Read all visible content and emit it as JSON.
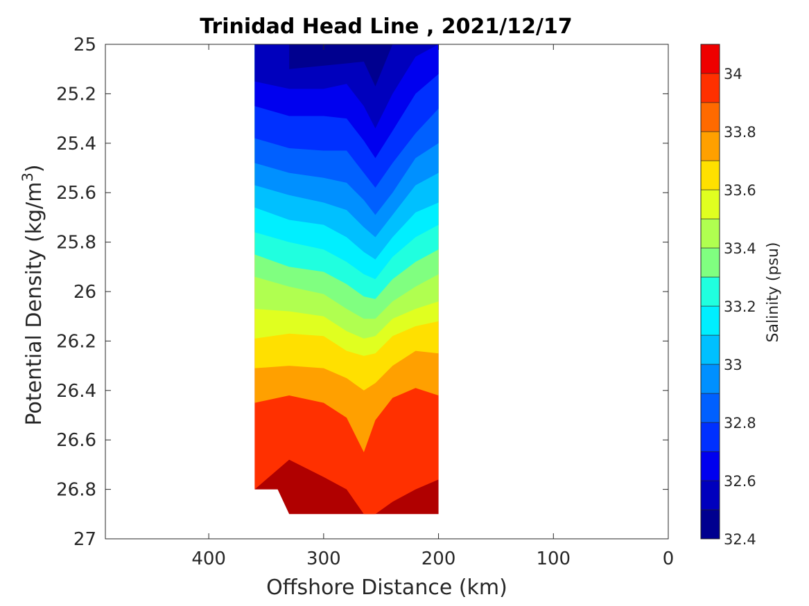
{
  "chart_data": {
    "type": "contour",
    "title": "Trinidad Head Line , 2021/12/17",
    "xlabel": "Offshore Distance (km)",
    "ylabel_main": "Potential Density (kg/m",
    "ylabel_sup": "3",
    "ylabel_end": ")",
    "colorbar_label": "Salinity (psu)",
    "xlim": [
      490,
      0
    ],
    "ylim": [
      25,
      27
    ],
    "x_reversed": true,
    "y_reversed": true,
    "xticks": [
      400,
      300,
      200,
      100,
      0
    ],
    "xtick_labels": [
      "400",
      "300",
      "200",
      "100",
      "0"
    ],
    "yticks": [
      25,
      25.2,
      25.4,
      25.6,
      25.8,
      26,
      26.2,
      26.4,
      26.6,
      26.8,
      27
    ],
    "ytick_labels": [
      "25",
      "25.2",
      "25.4",
      "25.6",
      "25.8",
      "26",
      "26.2",
      "26.4",
      "26.6",
      "26.8",
      "27"
    ],
    "colorbar": {
      "range": [
        32.4,
        34.1
      ],
      "ticks": [
        32.4,
        32.6,
        32.8,
        33,
        33.2,
        33.4,
        33.6,
        33.8,
        34
      ],
      "tick_labels": [
        "32.4",
        "32.6",
        "32.8",
        "33",
        "33.2",
        "33.4",
        "33.6",
        "33.8",
        "34"
      ],
      "levels": [
        32.4,
        32.5,
        32.6,
        32.7,
        32.8,
        32.9,
        33.0,
        33.1,
        33.2,
        33.3,
        33.4,
        33.5,
        33.6,
        33.7,
        33.8,
        33.9,
        34.0,
        34.1
      ],
      "colors": [
        "#00008f",
        "#0000bd",
        "#0000ef",
        "#0030ff",
        "#0060ff",
        "#0090ff",
        "#00c0ff",
        "#00efff",
        "#20ffdf",
        "#80ff80",
        "#b0ff50",
        "#e0ff20",
        "#ffe000",
        "#ffa000",
        "#ff6a00",
        "#ff3000",
        "#ef0000",
        "#b00000"
      ]
    },
    "data_extent": {
      "x_range_km": [
        360,
        200
      ],
      "top_density": 25.0,
      "bottom_density_offshore": 26.8,
      "bottom_density_inshore": 26.9
    },
    "stations_km": [
      360,
      330,
      300,
      280,
      265,
      255,
      240,
      220,
      200
    ],
    "isohalines": [
      {
        "level": 32.5,
        "y": [
          null,
          25.1,
          null,
          null,
          25.07,
          25.17,
          25.0,
          null,
          null
        ]
      },
      {
        "level": 32.6,
        "y": [
          25.15,
          25.18,
          25.18,
          25.16,
          25.25,
          25.34,
          25.2,
          25.05,
          25.0
        ]
      },
      {
        "level": 32.7,
        "y": [
          25.25,
          25.29,
          25.29,
          25.3,
          25.39,
          25.46,
          25.35,
          25.2,
          25.12
        ]
      },
      {
        "level": 32.8,
        "y": [
          25.38,
          25.42,
          25.43,
          25.43,
          25.52,
          25.58,
          25.48,
          25.36,
          25.26
        ]
      },
      {
        "level": 32.9,
        "y": [
          25.48,
          25.52,
          25.54,
          25.56,
          25.63,
          25.69,
          25.6,
          25.46,
          25.4
        ]
      },
      {
        "level": 33.0,
        "y": [
          25.57,
          25.61,
          25.64,
          25.67,
          25.74,
          25.78,
          25.69,
          25.57,
          25.52
        ]
      },
      {
        "level": 33.1,
        "y": [
          25.66,
          25.71,
          25.73,
          25.78,
          25.84,
          25.87,
          25.78,
          25.68,
          25.64
        ]
      },
      {
        "level": 33.2,
        "y": [
          25.76,
          25.8,
          25.83,
          25.88,
          25.93,
          25.95,
          25.86,
          25.78,
          25.73
        ]
      },
      {
        "level": 33.3,
        "y": [
          25.85,
          25.9,
          25.92,
          25.97,
          26.02,
          26.03,
          25.95,
          25.88,
          25.83
        ]
      },
      {
        "level": 33.4,
        "y": [
          25.94,
          25.98,
          26.01,
          26.07,
          26.11,
          26.11,
          26.04,
          25.98,
          25.93
        ]
      },
      {
        "level": 33.5,
        "y": [
          26.07,
          26.08,
          26.1,
          26.16,
          26.19,
          26.18,
          26.11,
          26.07,
          26.04
        ]
      },
      {
        "level": 33.6,
        "y": [
          26.19,
          26.17,
          26.18,
          26.24,
          26.26,
          26.25,
          26.18,
          26.14,
          26.12
        ]
      },
      {
        "level": 33.7,
        "y": [
          26.31,
          26.3,
          26.31,
          26.35,
          26.4,
          26.37,
          26.3,
          26.24,
          26.25
        ]
      },
      {
        "level": 33.8,
        "y": [
          26.45,
          26.42,
          26.45,
          26.51,
          26.65,
          26.52,
          26.43,
          26.39,
          26.42
        ]
      },
      {
        "level": 33.9,
        "y": [
          null,
          null,
          null,
          null,
          null,
          null,
          null,
          null,
          null
        ]
      },
      {
        "level": 34.0,
        "y": [
          26.8,
          26.68,
          26.75,
          26.8,
          26.9,
          26.9,
          26.85,
          26.8,
          26.76
        ]
      }
    ]
  }
}
